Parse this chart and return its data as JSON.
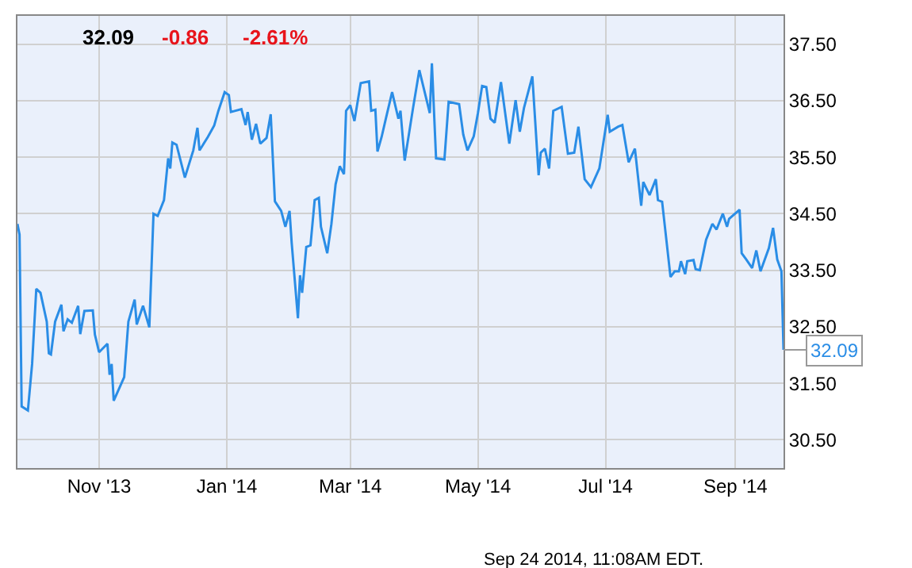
{
  "chart_data": {
    "type": "line",
    "x": [
      "2013-09-23",
      "2013-09-24",
      "2013-09-25",
      "2013-09-28",
      "2013-09-30",
      "2013-10-02",
      "2013-10-04",
      "2013-10-07",
      "2013-10-08",
      "2013-10-09",
      "2013-10-11",
      "2013-10-14",
      "2013-10-15",
      "2013-10-17",
      "2013-10-19",
      "2013-10-22",
      "2013-10-23",
      "2013-10-25",
      "2013-10-29",
      "2013-10-30",
      "2013-11-01",
      "2013-11-05",
      "2013-11-06",
      "2013-11-07",
      "2013-11-08",
      "2013-11-13",
      "2013-11-15",
      "2013-11-18",
      "2013-11-19",
      "2013-11-22",
      "2013-11-25",
      "2013-11-27",
      "2013-11-29",
      "2013-12-02",
      "2013-12-04",
      "2013-12-05",
      "2013-12-06",
      "2013-12-08",
      "2013-12-12",
      "2013-12-16",
      "2013-12-18",
      "2013-12-19",
      "2013-12-23",
      "2013-12-26",
      "2013-12-28",
      "2013-12-31",
      "2014-01-02",
      "2014-01-03",
      "2014-01-08",
      "2014-01-10",
      "2014-01-11",
      "2014-01-13",
      "2014-01-15",
      "2014-01-17",
      "2014-01-20",
      "2014-01-22",
      "2014-01-24",
      "2014-01-27",
      "2014-01-29",
      "2014-01-31",
      "2014-02-01",
      "2014-02-04",
      "2014-02-05",
      "2014-02-06",
      "2014-02-08",
      "2014-02-10",
      "2014-02-12",
      "2014-02-14",
      "2014-02-15",
      "2014-02-18",
      "2014-02-20",
      "2014-02-22",
      "2014-02-24",
      "2014-02-26",
      "2014-02-27",
      "2014-03-01",
      "2014-03-03",
      "2014-03-06",
      "2014-03-10",
      "2014-03-11",
      "2014-03-13",
      "2014-03-14",
      "2014-03-16",
      "2014-03-18",
      "2014-03-21",
      "2014-03-24",
      "2014-03-25",
      "2014-03-27",
      "2014-03-29",
      "2014-03-31",
      "2014-04-03",
      "2014-04-08",
      "2014-04-09",
      "2014-04-11",
      "2014-04-15",
      "2014-04-17",
      "2014-04-22",
      "2014-04-24",
      "2014-04-26",
      "2014-04-29",
      "2014-05-01",
      "2014-05-03",
      "2014-05-05",
      "2014-05-07",
      "2014-05-09",
      "2014-05-12",
      "2014-05-16",
      "2014-05-19",
      "2014-05-21",
      "2014-05-23",
      "2014-05-27",
      "2014-05-30",
      "2014-05-31",
      "2014-06-02",
      "2014-06-04",
      "2014-06-06",
      "2014-06-10",
      "2014-06-13",
      "2014-06-16",
      "2014-06-18",
      "2014-06-21",
      "2014-06-24",
      "2014-06-28",
      "2014-07-02",
      "2014-07-03",
      "2014-07-07",
      "2014-07-09",
      "2014-07-12",
      "2014-07-15",
      "2014-07-18",
      "2014-07-19",
      "2014-07-22",
      "2014-07-25",
      "2014-07-26",
      "2014-07-28",
      "2014-08-01",
      "2014-08-03",
      "2014-08-05",
      "2014-08-06",
      "2014-08-08",
      "2014-08-09",
      "2014-08-12",
      "2014-08-13",
      "2014-08-15",
      "2014-08-18",
      "2014-08-21",
      "2014-08-23",
      "2014-08-26",
      "2014-08-28",
      "2014-08-29",
      "2014-09-03",
      "2014-09-04",
      "2014-09-06",
      "2014-09-09",
      "2014-09-11",
      "2014-09-13",
      "2014-09-17",
      "2014-09-19",
      "2014-09-21",
      "2014-09-23",
      "2014-09-24"
    ],
    "series": [
      {
        "color": "#2a8de6",
        "values": [
          34.32,
          34.13,
          31.09,
          31.02,
          31.84,
          33.17,
          33.1,
          32.59,
          32.03,
          32.01,
          32.59,
          32.89,
          32.42,
          32.63,
          32.57,
          32.87,
          32.37,
          32.78,
          32.79,
          32.36,
          32.05,
          32.2,
          31.65,
          31.84,
          31.19,
          31.61,
          32.59,
          32.98,
          32.54,
          32.87,
          32.49,
          34.5,
          34.46,
          34.74,
          35.48,
          35.3,
          35.76,
          35.72,
          35.14,
          35.62,
          36.02,
          35.62,
          35.86,
          36.06,
          36.32,
          36.65,
          36.6,
          36.3,
          36.35,
          36.07,
          36.3,
          35.81,
          36.09,
          35.74,
          35.84,
          36.26,
          34.72,
          34.55,
          34.27,
          34.55,
          33.99,
          32.65,
          33.41,
          33.1,
          33.91,
          33.94,
          34.74,
          34.78,
          34.27,
          33.8,
          34.32,
          35.02,
          35.34,
          35.2,
          36.32,
          36.42,
          36.14,
          36.81,
          36.84,
          36.32,
          36.34,
          35.6,
          35.86,
          36.18,
          36.65,
          36.18,
          36.32,
          35.44,
          35.9,
          36.37,
          37.04,
          36.28,
          37.16,
          35.48,
          35.46,
          36.48,
          36.44,
          35.9,
          35.62,
          35.87,
          36.28,
          36.76,
          36.74,
          36.18,
          36.11,
          36.83,
          35.74,
          36.51,
          35.95,
          36.37,
          36.93,
          35.18,
          35.58,
          35.65,
          35.3,
          36.32,
          36.39,
          35.56,
          35.58,
          36.04,
          35.11,
          34.97,
          35.3,
          36.25,
          35.95,
          36.04,
          36.07,
          35.41,
          35.65,
          34.64,
          35.06,
          34.83,
          35.11,
          34.74,
          34.71,
          33.38,
          33.48,
          33.48,
          33.66,
          33.43,
          33.66,
          33.68,
          33.52,
          33.5,
          34.04,
          34.32,
          34.22,
          34.5,
          34.27,
          34.41,
          34.57,
          33.8,
          33.7,
          33.54,
          33.85,
          33.48,
          33.89,
          34.25,
          33.69,
          33.48,
          32.09
        ]
      }
    ],
    "xlim": [
      "2013-09-23",
      "2014-09-24"
    ],
    "xticks": [
      {
        "value": "2013-11-01",
        "label": "Nov '13"
      },
      {
        "value": "2014-01-01",
        "label": "Jan '14"
      },
      {
        "value": "2014-03-01",
        "label": "Mar '14"
      },
      {
        "value": "2014-05-01",
        "label": "May '14"
      },
      {
        "value": "2014-07-01",
        "label": "Jul '14"
      },
      {
        "value": "2014-09-01",
        "label": "Sep '14"
      }
    ],
    "ylim": [
      30,
      38
    ],
    "yticks": [
      {
        "value": 30.5,
        "label": "30.50"
      },
      {
        "value": 31.5,
        "label": "31.50"
      },
      {
        "value": 32.5,
        "label": "32.50"
      },
      {
        "value": 33.5,
        "label": "33.50"
      },
      {
        "value": 34.5,
        "label": "34.50"
      },
      {
        "value": 35.5,
        "label": "35.50"
      },
      {
        "value": 36.5,
        "label": "36.50"
      },
      {
        "value": 37.5,
        "label": "37.50"
      }
    ],
    "grid": true,
    "annotations": [
      "32.09",
      "-0.86",
      "-2.61%",
      {
        "text": "32.09",
        "x": "2014-09-24",
        "y": 32.09
      },
      "Sep 24 2014, 11:08AM EDT."
    ]
  }
}
